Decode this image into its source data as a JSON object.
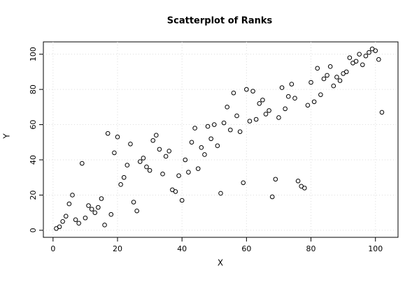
{
  "chart_data": {
    "type": "scatter",
    "title": "Scatterplot of Ranks",
    "x_label": "X",
    "y_label": "Y",
    "x": [
      1,
      2,
      3,
      4,
      5,
      6,
      7,
      8,
      9,
      10,
      11,
      12,
      13,
      14,
      15,
      16,
      17,
      18,
      19,
      20,
      21,
      22,
      23,
      24,
      25,
      26,
      27,
      28,
      29,
      30,
      31,
      32,
      33,
      34,
      35,
      36,
      37,
      38,
      39,
      40,
      41,
      42,
      43,
      44,
      45,
      46,
      47,
      48,
      49,
      50,
      51,
      52,
      53,
      54,
      55,
      56,
      57,
      58,
      59,
      60,
      61,
      62,
      63,
      64,
      65,
      66,
      67,
      68,
      69,
      70,
      71,
      72,
      73,
      74,
      75,
      76,
      77,
      78,
      79,
      80,
      81,
      82,
      83,
      84,
      85,
      86,
      87,
      88,
      89,
      90,
      91,
      92,
      93,
      94,
      95,
      96,
      97,
      98,
      99,
      100,
      101,
      102
    ],
    "values": [
      1,
      2,
      5,
      8,
      15,
      20,
      6,
      4,
      38,
      7,
      14,
      12,
      10,
      13,
      18,
      3,
      55,
      9,
      44,
      53,
      26,
      30,
      37,
      49,
      16,
      11,
      39,
      41,
      36,
      34,
      51,
      54,
      46,
      32,
      42,
      45,
      23,
      22,
      31,
      17,
      40,
      33,
      50,
      58,
      35,
      47,
      43,
      59,
      52,
      60,
      48,
      21,
      61,
      70,
      57,
      78,
      65,
      56,
      27,
      80,
      62,
      79,
      63,
      72,
      74,
      66,
      68,
      19,
      29,
      64,
      81,
      69,
      76,
      83,
      75,
      28,
      25,
      24,
      71,
      84,
      73,
      92,
      77,
      86,
      88,
      93,
      82,
      87,
      85,
      89,
      90,
      98,
      95,
      96,
      100,
      94,
      99,
      101,
      103,
      102,
      97,
      67
    ],
    "color": "#000000",
    "xlim": [
      -3,
      107
    ],
    "ylim": [
      -4,
      107
    ],
    "xticks": [
      0,
      20,
      40,
      60,
      80,
      100
    ],
    "yticks": [
      0,
      20,
      40,
      60,
      80,
      100
    ],
    "grid": true
  }
}
